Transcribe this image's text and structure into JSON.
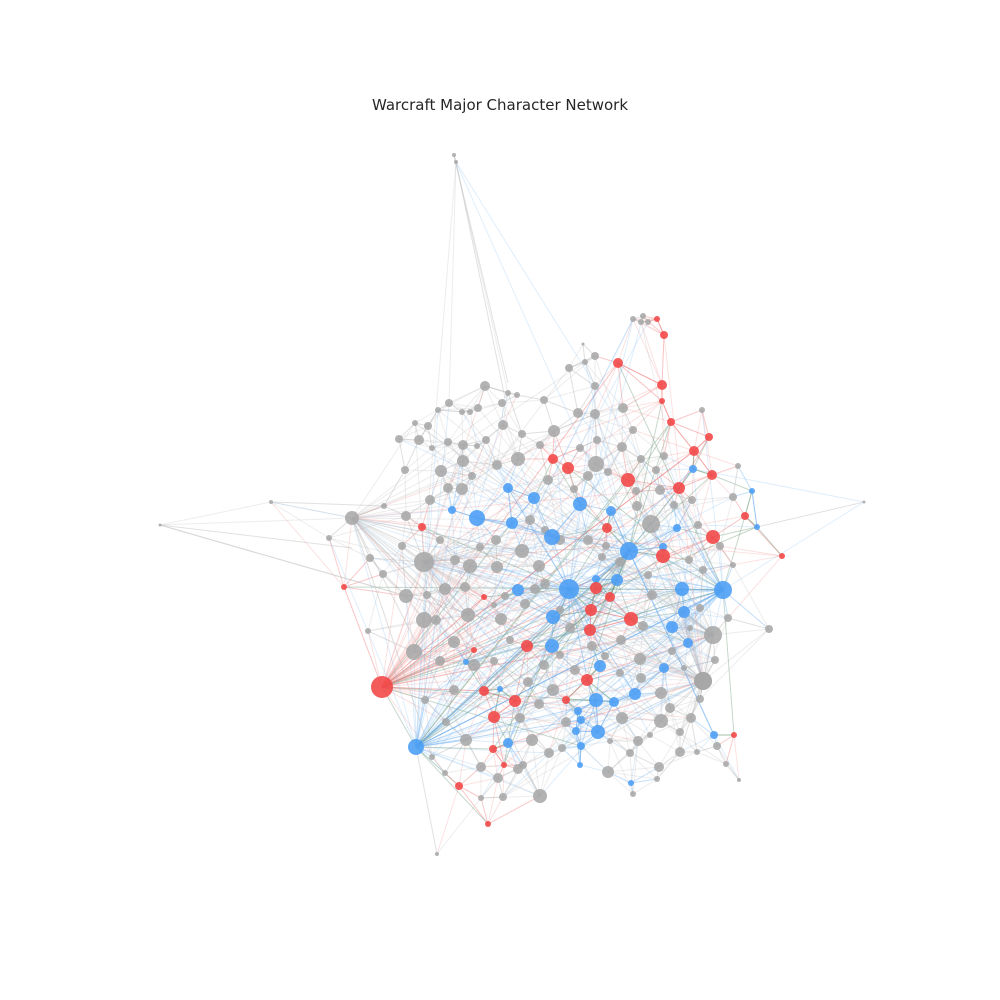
{
  "title": "Warcraft Major Character Network",
  "colors": {
    "alliance": "#4a9df5",
    "horde": "#f24646",
    "neutral": "#a6a6a6",
    "edge_neutral": "#bdbdbd",
    "edge_alliance": "#6fb0f0",
    "edge_horde": "#f07a7a",
    "edge_cross": "#5f8f6a",
    "background": "#ffffff"
  }
}
